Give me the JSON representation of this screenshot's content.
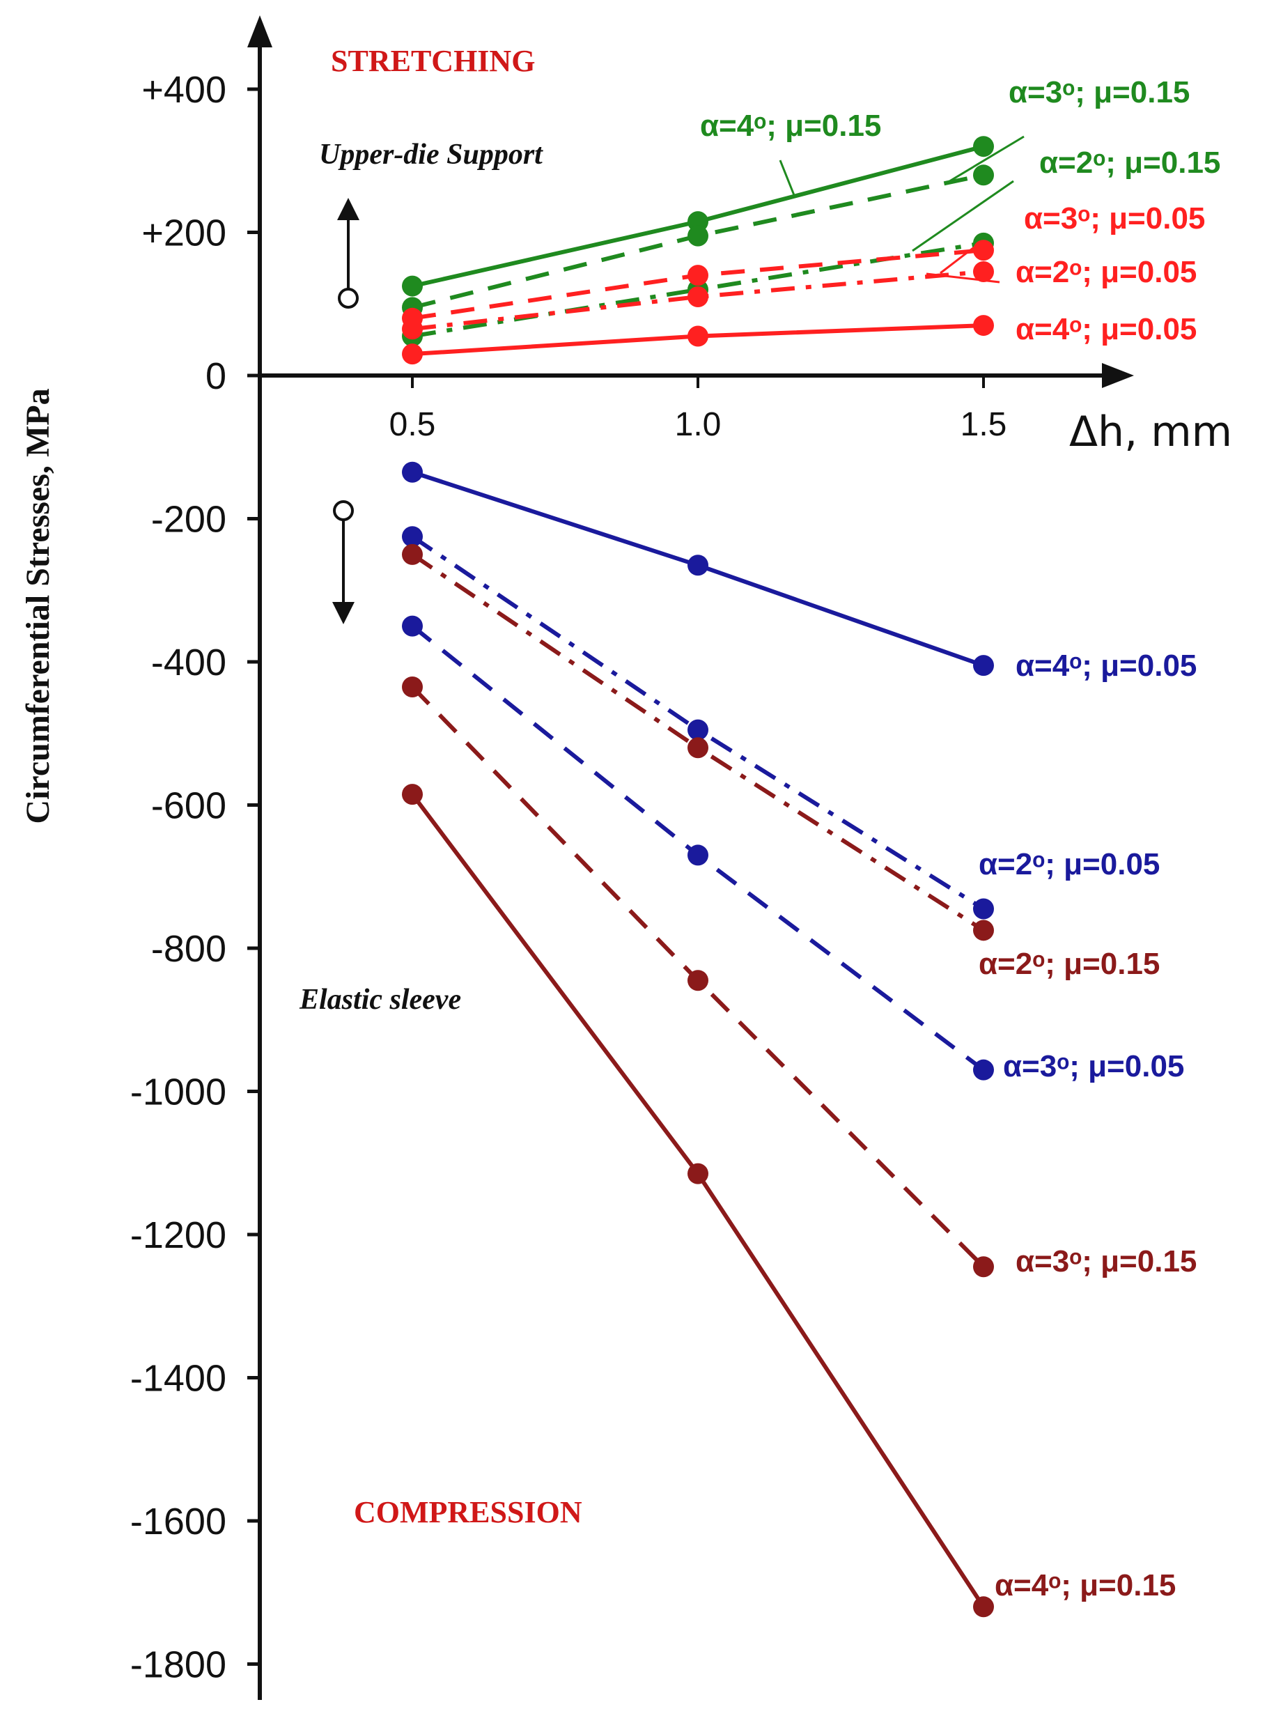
{
  "chart_data": {
    "type": "line",
    "ylabel": "Circumferential Stresses, MPa",
    "xlabel": "Δh, mm",
    "x": [
      0.5,
      1.0,
      1.5
    ],
    "x_ticks": [
      "0.5",
      "1.0",
      "1.5"
    ],
    "y_ticks": [
      "+400",
      "+200",
      "0",
      "-200",
      "-400",
      "-600",
      "-800",
      "-1000",
      "-1200",
      "-1400",
      "-1600",
      "-1800"
    ],
    "ylim": [
      -1800,
      400
    ],
    "grid": false,
    "annotations": {
      "stretching": "STRETCHING",
      "compression": "COMPRESSION",
      "upper_die_support": "Upper-die Support",
      "elastic_sleeve": "Elastic sleeve"
    },
    "colors": {
      "green": "#1f8a1f",
      "red": "#ff2020",
      "blue": "#1a1a9c",
      "maroon": "#8b1a1a"
    },
    "series": [
      {
        "name": "α=4ᵒ; μ=0.15",
        "color": "#1f8a1f",
        "dash": "solid",
        "values": [
          125,
          215,
          320
        ]
      },
      {
        "name": "α=3ᵒ; μ=0.15",
        "color": "#1f8a1f",
        "dash": "dashed",
        "values": [
          95,
          195,
          280
        ]
      },
      {
        "name": "α=2ᵒ; μ=0.15",
        "color": "#1f8a1f",
        "dash": "dashdot",
        "values": [
          55,
          120,
          185
        ]
      },
      {
        "name": "α=3ᵒ; μ=0.05",
        "color": "#ff2020",
        "dash": "dashed",
        "values": [
          80,
          140,
          175
        ]
      },
      {
        "name": "α=2ᵒ; μ=0.05",
        "color": "#ff2020",
        "dash": "dashdot",
        "values": [
          65,
          110,
          145
        ]
      },
      {
        "name": "α=4ᵒ; μ=0.05",
        "color": "#ff2020",
        "dash": "solid",
        "values": [
          30,
          55,
          70
        ]
      },
      {
        "name": "α=4ᵒ; μ=0.05",
        "color": "#1a1a9c",
        "dash": "solid",
        "values": [
          -135,
          -265,
          -405
        ]
      },
      {
        "name": "α=2ᵒ; μ=0.05",
        "color": "#1a1a9c",
        "dash": "dashdot",
        "values": [
          -225,
          -495,
          -745
        ]
      },
      {
        "name": "α=2ᵒ; μ=0.15",
        "color": "#8b1a1a",
        "dash": "dashdot",
        "values": [
          -250,
          -520,
          -775
        ]
      },
      {
        "name": "α=3ᵒ; μ=0.05",
        "color": "#1a1a9c",
        "dash": "dashed",
        "values": [
          -350,
          -670,
          -970
        ]
      },
      {
        "name": "α=3ᵒ; μ=0.15",
        "color": "#8b1a1a",
        "dash": "dashed",
        "values": [
          -435,
          -845,
          -1245
        ]
      },
      {
        "name": "α=4ᵒ; μ=0.15",
        "color": "#8b1a1a",
        "dash": "solid",
        "values": [
          -585,
          -1115,
          -1720
        ]
      }
    ]
  }
}
